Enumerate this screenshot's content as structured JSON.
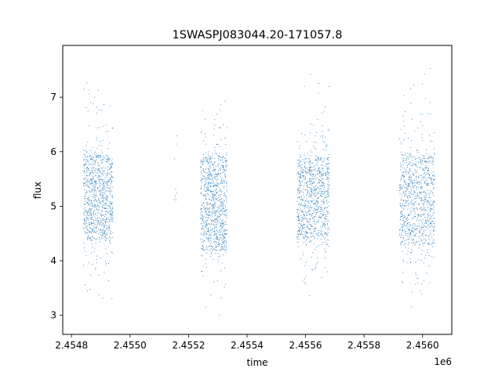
{
  "chart_data": {
    "type": "scatter",
    "title": "1SWASPJ083044.20-171057.8",
    "xlabel": "time",
    "ylabel": "flux",
    "x_offset_label": "1e6",
    "x_ticks": [
      "2.4548",
      "2.4550",
      "2.4552",
      "2.4554",
      "2.4556",
      "2.4558",
      "2.4560"
    ],
    "x_tick_values": [
      2454800,
      2455000,
      2455200,
      2455400,
      2455600,
      2455800,
      2456000
    ],
    "y_ticks": [
      "3",
      "4",
      "5",
      "6",
      "7"
    ],
    "y_tick_values": [
      3,
      4,
      5,
      6,
      7
    ],
    "xlim": [
      2454770,
      2456100
    ],
    "ylim": [
      2.65,
      7.95
    ],
    "grid": false,
    "marker_color": "#1f77b4",
    "observing_seasons": [
      {
        "x_start": 2454840,
        "x_end": 2454940,
        "y_low": 4.4,
        "y_high": 5.95,
        "y_min": 2.9,
        "y_max": 7.5
      },
      {
        "x_start": 2455150,
        "x_end": 2455160,
        "y_low": 4.95,
        "y_high": 6.3,
        "y_min": 4.95,
        "y_max": 6.3
      },
      {
        "x_start": 2455240,
        "x_end": 2455330,
        "y_low": 4.2,
        "y_high": 5.9,
        "y_min": 2.95,
        "y_max": 7.35
      },
      {
        "x_start": 2455570,
        "x_end": 2455680,
        "y_low": 4.4,
        "y_high": 5.9,
        "y_min": 3.25,
        "y_max": 7.55
      },
      {
        "x_start": 2455920,
        "x_end": 2456040,
        "y_low": 4.3,
        "y_high": 5.95,
        "y_min": 2.95,
        "y_max": 7.7
      }
    ]
  }
}
